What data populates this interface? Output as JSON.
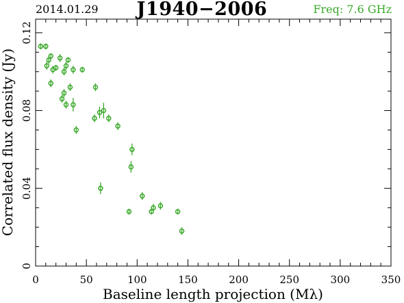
{
  "header": {
    "date": "2014.01.29",
    "title": "J1940−2006",
    "freq": "Freq: 7.6 GHz"
  },
  "colors": {
    "series": "#3aa82a",
    "axes": "#000000",
    "freq_text": "#3aa82a"
  },
  "chart_data": {
    "type": "scatter",
    "xlabel": "Baseline length projection (Mλ)",
    "ylabel": "Correlated flux density (Jy)",
    "xlim": [
      0,
      350
    ],
    "ylim": [
      0,
      0.127
    ],
    "x_ticks": [
      0,
      50,
      100,
      150,
      200,
      250,
      300,
      350
    ],
    "x_tick_labels": [
      "0",
      "50",
      "100",
      "150",
      "200",
      "250",
      "300",
      "350"
    ],
    "y_ticks": [
      0,
      0.04,
      0.08,
      0.12
    ],
    "y_tick_labels": [
      "0",
      "0.04",
      "0.08",
      "0.12"
    ],
    "grid": false,
    "series": [
      {
        "points": [
          {
            "x": 5,
            "y": 0.113,
            "err": 0.0015
          },
          {
            "x": 10,
            "y": 0.113,
            "err": 0.0015
          },
          {
            "x": 11,
            "y": 0.103,
            "err": 0.002
          },
          {
            "x": 13,
            "y": 0.106,
            "err": 0.002
          },
          {
            "x": 15,
            "y": 0.108,
            "err": 0.0015
          },
          {
            "x": 15,
            "y": 0.094,
            "err": 0.002
          },
          {
            "x": 17,
            "y": 0.101,
            "err": 0.002
          },
          {
            "x": 20,
            "y": 0.102,
            "err": 0.0015
          },
          {
            "x": 24,
            "y": 0.107,
            "err": 0.002
          },
          {
            "x": 26,
            "y": 0.086,
            "err": 0.002
          },
          {
            "x": 28,
            "y": 0.089,
            "err": 0.002
          },
          {
            "x": 28,
            "y": 0.1,
            "err": 0.002
          },
          {
            "x": 30,
            "y": 0.083,
            "err": 0.002
          },
          {
            "x": 30,
            "y": 0.103,
            "err": 0.002
          },
          {
            "x": 32,
            "y": 0.106,
            "err": 0.0015
          },
          {
            "x": 34,
            "y": 0.092,
            "err": 0.002
          },
          {
            "x": 37,
            "y": 0.083,
            "err": 0.0035
          },
          {
            "x": 37,
            "y": 0.101,
            "err": 0.002
          },
          {
            "x": 40,
            "y": 0.07,
            "err": 0.002
          },
          {
            "x": 46,
            "y": 0.101,
            "err": 0.0015
          },
          {
            "x": 58,
            "y": 0.076,
            "err": 0.002
          },
          {
            "x": 59,
            "y": 0.092,
            "err": 0.002
          },
          {
            "x": 63,
            "y": 0.079,
            "err": 0.003
          },
          {
            "x": 64,
            "y": 0.04,
            "err": 0.003
          },
          {
            "x": 67,
            "y": 0.08,
            "err": 0.004
          },
          {
            "x": 72,
            "y": 0.076,
            "err": 0.002
          },
          {
            "x": 81,
            "y": 0.072,
            "err": 0.002
          },
          {
            "x": 92,
            "y": 0.028,
            "err": 0.0015
          },
          {
            "x": 94,
            "y": 0.051,
            "err": 0.003
          },
          {
            "x": 95,
            "y": 0.06,
            "err": 0.003
          },
          {
            "x": 105,
            "y": 0.036,
            "err": 0.002
          },
          {
            "x": 114,
            "y": 0.028,
            "err": 0.0015
          },
          {
            "x": 116,
            "y": 0.03,
            "err": 0.002
          },
          {
            "x": 123,
            "y": 0.031,
            "err": 0.002
          },
          {
            "x": 140,
            "y": 0.028,
            "err": 0.0015
          },
          {
            "x": 144,
            "y": 0.018,
            "err": 0.002
          }
        ]
      }
    ]
  }
}
